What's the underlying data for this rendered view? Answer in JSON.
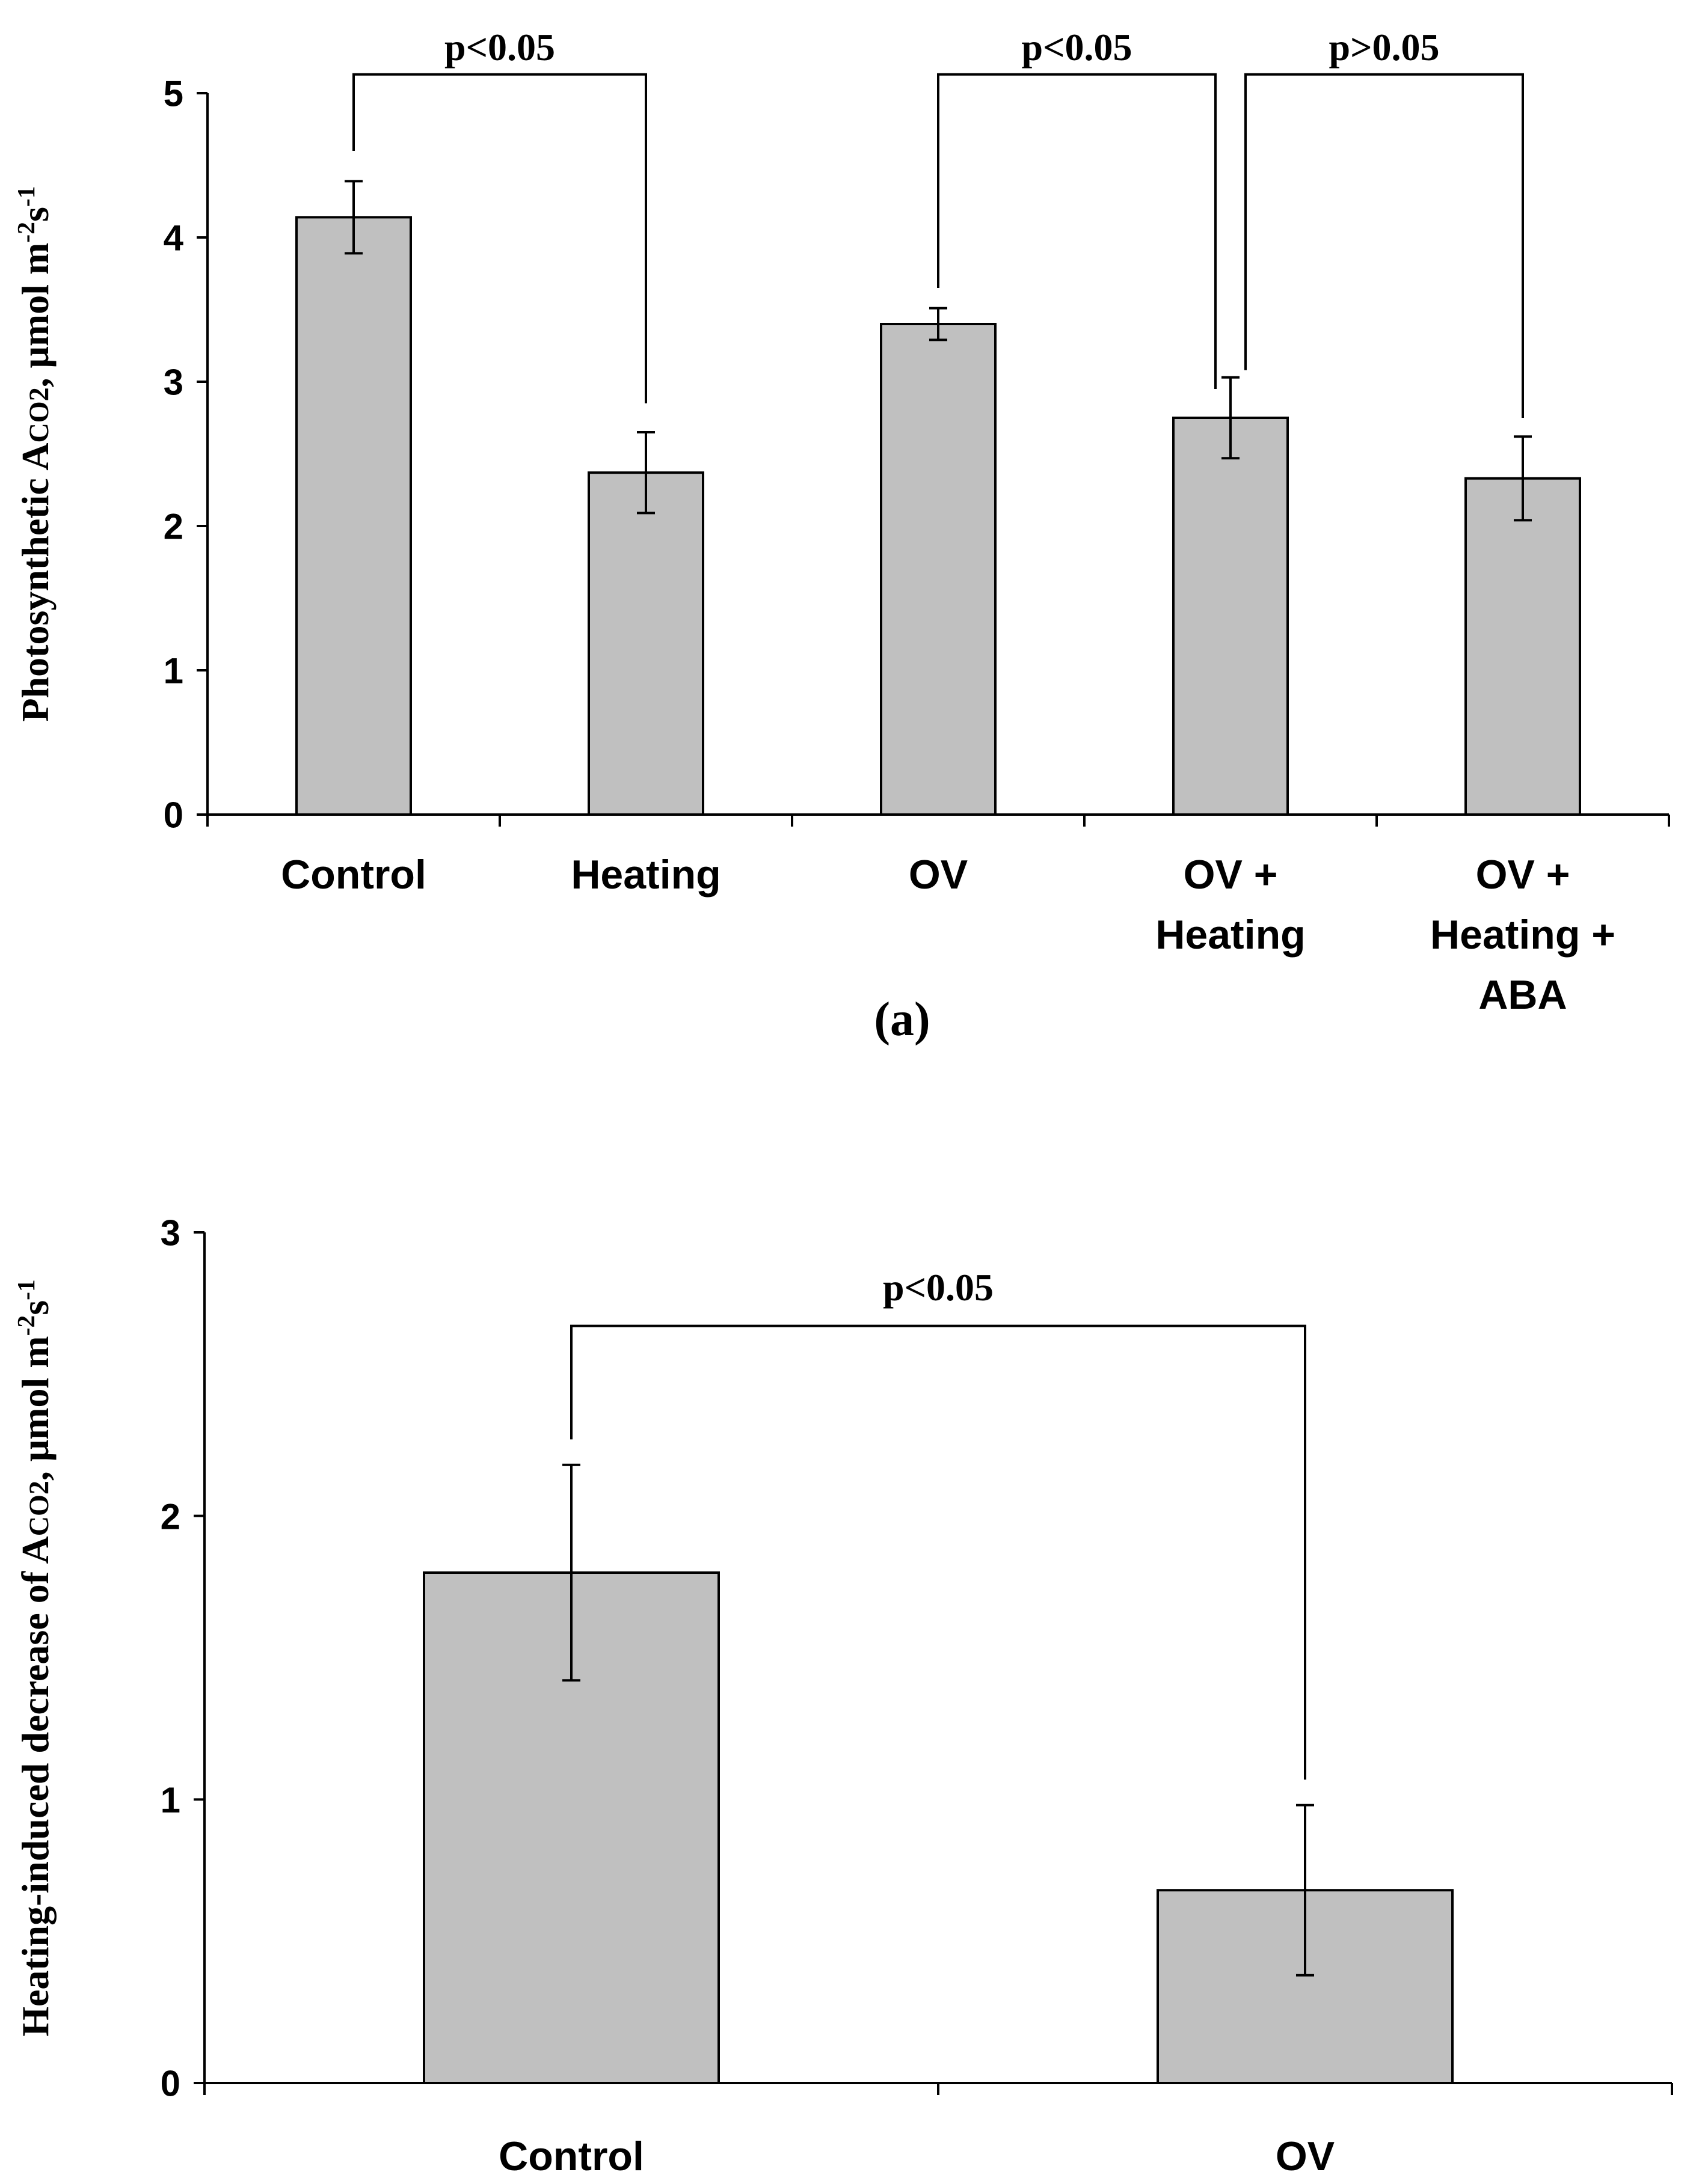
{
  "chart_data": [
    {
      "type": "bar",
      "panel_label": "(a)",
      "ylabel": {
        "main": "Photosynthetic A",
        "sub": "CO2",
        "unit": ", μmol m",
        "exp1": "-2",
        "s": "s",
        "exp2": "-1"
      },
      "ylim": [
        0,
        5
      ],
      "yticks": [
        "0",
        "1",
        "2",
        "3",
        "4",
        "5"
      ],
      "categories": [
        [
          "Control"
        ],
        [
          "Heating"
        ],
        [
          "OV"
        ],
        [
          "OV +",
          "Heating"
        ],
        [
          "OV +",
          "Heating +",
          "ABA"
        ]
      ],
      "values": [
        4.14,
        2.37,
        3.4,
        2.75,
        2.33
      ],
      "errors": [
        0.25,
        0.28,
        0.11,
        0.28,
        0.29
      ],
      "brackets": [
        {
          "from": 0,
          "to": 1,
          "label": "p<0.05",
          "from_top": 4.6,
          "to_top": 2.85,
          "y": 5.13
        },
        {
          "from": 2,
          "to": 3,
          "label": "p<0.05",
          "from_top": 3.65,
          "to_top": 2.95,
          "y": 5.13
        },
        {
          "from": 3,
          "to": 4,
          "label": "p>0.05",
          "from_top": 3.08,
          "to_top": 2.75,
          "y": 5.13
        }
      ],
      "colors": {
        "bar": "#c0c0c0",
        "stroke": "#000000"
      }
    },
    {
      "type": "bar",
      "panel_label": "",
      "ylabel": {
        "main": "Heating-induced decrease of A",
        "sub": "CO2",
        "unit": ", μmol m",
        "exp1": "-2",
        "s": "s",
        "exp2": "-1"
      },
      "ylim": [
        0,
        3
      ],
      "yticks": [
        "0",
        "1",
        "2",
        "3"
      ],
      "categories": [
        [
          "Control"
        ],
        [
          "OV"
        ]
      ],
      "values": [
        1.8,
        0.68
      ],
      "errors": [
        0.38,
        0.3
      ],
      "brackets": [
        {
          "from": 0,
          "to": 1,
          "label": "p<0.05",
          "from_top": 2.27,
          "to_top": 1.07,
          "y": 2.67
        }
      ],
      "colors": {
        "bar": "#c0c0c0",
        "stroke": "#000000"
      }
    }
  ]
}
